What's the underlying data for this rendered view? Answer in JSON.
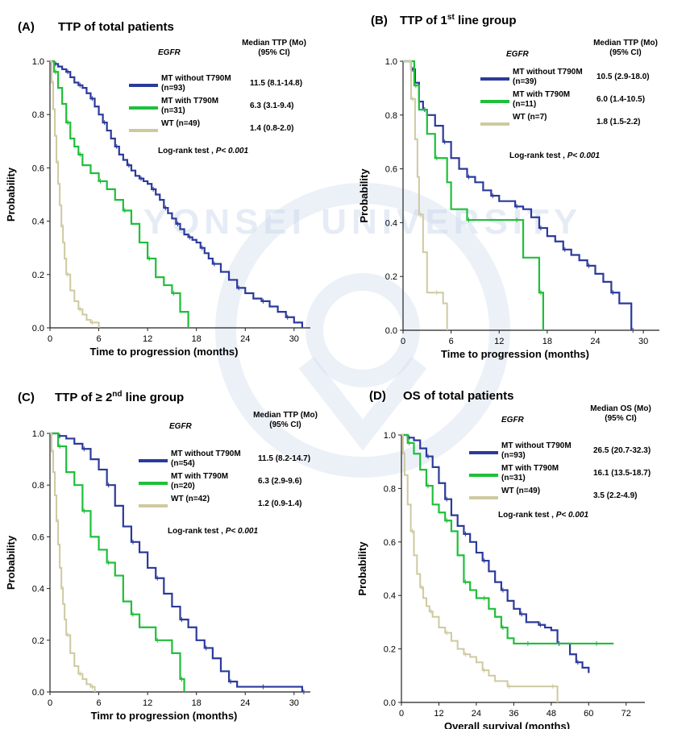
{
  "colors": {
    "mt_without": "#2b3a9b",
    "mt_with": "#1fbf3a",
    "wt": "#cfc9a0",
    "axis": "#222222",
    "watermark": "#c9d6ea"
  },
  "watermark": {
    "text": "YONSEI UNIVERSITY"
  },
  "chart_data": [
    {
      "type": "line",
      "panel_label": "(A)",
      "title": "TTP of total patients",
      "title_sup": "",
      "title_suffix": "",
      "xlabel": "Time to progression (months)",
      "ylabel": "Probability",
      "xlim": [
        0,
        32
      ],
      "ylim": [
        0,
        1.0
      ],
      "xticks": [
        0,
        6,
        12,
        18,
        24,
        30
      ],
      "yticks": [
        0.0,
        0.2,
        0.4,
        0.6,
        0.8,
        1.0
      ],
      "legend_header": "EGFR",
      "median_header": "Median TTP (Mo)",
      "ci_header": "(95% CI)",
      "test_label": "Log-rank test ,",
      "test_p": "P< 0.001",
      "series": [
        {
          "key": "mt_without",
          "name": "MT without T790M",
          "n": "(n=93)",
          "median": "11.5 (8.1-14.8)",
          "x": [
            0,
            0.5,
            1,
            1.5,
            2,
            2.5,
            3,
            3.5,
            4,
            4.5,
            5,
            5.5,
            6,
            6.5,
            7,
            7.5,
            8,
            8.5,
            9,
            9.5,
            10,
            10.5,
            11,
            11.5,
            12,
            12.5,
            13,
            13.5,
            14,
            14.5,
            15,
            15.5,
            16,
            16.5,
            17,
            17.5,
            18,
            18.5,
            19,
            19.5,
            20,
            21,
            22,
            23,
            24,
            25,
            26,
            27,
            28,
            29,
            30,
            31
          ],
          "y": [
            1.0,
            0.99,
            0.98,
            0.97,
            0.96,
            0.94,
            0.92,
            0.91,
            0.9,
            0.88,
            0.86,
            0.83,
            0.8,
            0.77,
            0.74,
            0.71,
            0.68,
            0.65,
            0.63,
            0.61,
            0.59,
            0.57,
            0.56,
            0.55,
            0.54,
            0.52,
            0.5,
            0.48,
            0.45,
            0.43,
            0.41,
            0.39,
            0.37,
            0.35,
            0.34,
            0.33,
            0.32,
            0.3,
            0.28,
            0.26,
            0.24,
            0.21,
            0.18,
            0.15,
            0.13,
            0.11,
            0.1,
            0.08,
            0.06,
            0.04,
            0.02,
            0.0
          ]
        },
        {
          "key": "mt_with",
          "name": "MT with T790M",
          "n": "(n=31)",
          "median": "6.3 (3.1-9.4)",
          "x": [
            0,
            0.5,
            1,
            1.5,
            2,
            2.5,
            3,
            3.5,
            4,
            5,
            6,
            7,
            8,
            9,
            10,
            11,
            12,
            13,
            14,
            15,
            16,
            17
          ],
          "y": [
            1.0,
            0.96,
            0.9,
            0.84,
            0.77,
            0.71,
            0.68,
            0.65,
            0.61,
            0.58,
            0.55,
            0.52,
            0.48,
            0.44,
            0.39,
            0.32,
            0.26,
            0.19,
            0.16,
            0.13,
            0.06,
            0.0
          ]
        },
        {
          "key": "wt",
          "name": "WT (n=49)",
          "n": "",
          "median": "1.4 (0.8-2.0)",
          "x": [
            0,
            0.2,
            0.4,
            0.6,
            0.8,
            1.0,
            1.2,
            1.4,
            1.6,
            1.8,
            2.0,
            2.5,
            3,
            3.5,
            4,
            4.5,
            5,
            6
          ],
          "y": [
            1.0,
            0.92,
            0.82,
            0.72,
            0.62,
            0.54,
            0.46,
            0.38,
            0.32,
            0.26,
            0.2,
            0.14,
            0.1,
            0.07,
            0.05,
            0.03,
            0.02,
            0.0
          ]
        }
      ]
    },
    {
      "type": "line",
      "panel_label": "(B)",
      "title": "TTP of 1",
      "title_sup": "st",
      "title_suffix": " line group",
      "xlabel": "Time to progression (months)",
      "ylabel": "Probability",
      "xlim": [
        0,
        32
      ],
      "ylim": [
        0,
        1.0
      ],
      "xticks": [
        0,
        6,
        12,
        18,
        24,
        30
      ],
      "yticks": [
        0.0,
        0.2,
        0.4,
        0.6,
        0.8,
        1.0
      ],
      "legend_header": "EGFR",
      "median_header": "Median TTP (Mo)",
      "ci_header": "(95% CI)",
      "test_label": "Log-rank test ,",
      "test_p": "P< 0.001",
      "series": [
        {
          "key": "mt_without",
          "name": "MT without T790M",
          "n": "(n=39)",
          "median": "10.5 (2.9-18.0)",
          "x": [
            0,
            1,
            1.5,
            2,
            2.5,
            3,
            4,
            5,
            6,
            7,
            8,
            9,
            10,
            11,
            12,
            13,
            14,
            15,
            16,
            17,
            18,
            19,
            20,
            21,
            22,
            23,
            24,
            25,
            26,
            27,
            28,
            28.5
          ],
          "y": [
            1.0,
            0.97,
            0.92,
            0.85,
            0.82,
            0.8,
            0.76,
            0.7,
            0.64,
            0.6,
            0.57,
            0.55,
            0.52,
            0.5,
            0.48,
            0.48,
            0.46,
            0.45,
            0.42,
            0.38,
            0.35,
            0.33,
            0.3,
            0.28,
            0.26,
            0.24,
            0.21,
            0.18,
            0.14,
            0.1,
            0.1,
            0.0
          ]
        },
        {
          "key": "mt_with",
          "name": "MT with T790M",
          "n": "(n=11)",
          "median": "6.0 (1.4-10.5)",
          "x": [
            0,
            1.4,
            2,
            3,
            4,
            5.5,
            6,
            8,
            10,
            12,
            14,
            15,
            16,
            17,
            17.5
          ],
          "y": [
            1.0,
            0.91,
            0.82,
            0.73,
            0.64,
            0.55,
            0.45,
            0.41,
            0.41,
            0.41,
            0.41,
            0.27,
            0.27,
            0.14,
            0.0
          ]
        },
        {
          "key": "wt",
          "name": "WT (n=7)",
          "n": "",
          "median": "1.8 (1.5-2.2)",
          "x": [
            0,
            1.0,
            1.5,
            1.8,
            2.0,
            2.5,
            3,
            4,
            5,
            5.5
          ],
          "y": [
            1.0,
            0.86,
            0.71,
            0.57,
            0.43,
            0.29,
            0.14,
            0.14,
            0.1,
            0.0
          ]
        }
      ]
    },
    {
      "type": "line",
      "panel_label": "(C)",
      "title": "TTP of ≥ 2",
      "title_sup": "nd",
      "title_suffix": " line group",
      "xlabel": "Timr to progression (months)",
      "ylabel": "Probability",
      "xlim": [
        0,
        32
      ],
      "ylim": [
        0,
        1.0
      ],
      "xticks": [
        0,
        6,
        12,
        18,
        24,
        30
      ],
      "yticks": [
        0.0,
        0.2,
        0.4,
        0.6,
        0.8,
        1.0
      ],
      "legend_header": "EGFR",
      "median_header": "Median TTP (Mo)",
      "ci_header": "(95% CI)",
      "test_label": "Log-rank test ,",
      "test_p": "P< 0.001",
      "series": [
        {
          "key": "mt_without",
          "name": "MT without T790M",
          "n": "(n=54)",
          "median": "11.5 (8.2-14.7)",
          "x": [
            0,
            1,
            2,
            3,
            4,
            5,
            6,
            7,
            8,
            9,
            10,
            11,
            12,
            13,
            14,
            15,
            16,
            17,
            18,
            19,
            20,
            21,
            22,
            23,
            24,
            26,
            28,
            30,
            31
          ],
          "y": [
            1.0,
            0.99,
            0.98,
            0.96,
            0.94,
            0.9,
            0.86,
            0.8,
            0.72,
            0.64,
            0.58,
            0.54,
            0.48,
            0.44,
            0.38,
            0.33,
            0.28,
            0.25,
            0.2,
            0.17,
            0.13,
            0.08,
            0.04,
            0.02,
            0.02,
            0.02,
            0.02,
            0.02,
            0.0
          ]
        },
        {
          "key": "mt_with",
          "name": "MT with T790M",
          "n": "(n=20)",
          "median": "6.3 (2.9-9.6)",
          "x": [
            0,
            1,
            2,
            3,
            4,
            5,
            6,
            7,
            8,
            9,
            10,
            11,
            12,
            13,
            14,
            15,
            16,
            16.5
          ],
          "y": [
            1.0,
            0.95,
            0.85,
            0.8,
            0.7,
            0.6,
            0.55,
            0.5,
            0.45,
            0.35,
            0.3,
            0.25,
            0.25,
            0.2,
            0.2,
            0.15,
            0.05,
            0.0
          ]
        },
        {
          "key": "wt",
          "name": "WT (n=42)",
          "n": "",
          "median": "1.2 (0.9-1.4)",
          "x": [
            0,
            0.2,
            0.4,
            0.6,
            0.8,
            1.0,
            1.2,
            1.4,
            1.6,
            1.8,
            2.0,
            2.5,
            3,
            3.5,
            4,
            4.5,
            5,
            5.5
          ],
          "y": [
            1.0,
            0.93,
            0.85,
            0.76,
            0.66,
            0.57,
            0.48,
            0.4,
            0.34,
            0.28,
            0.22,
            0.15,
            0.1,
            0.07,
            0.05,
            0.03,
            0.02,
            0.0
          ]
        }
      ]
    },
    {
      "type": "line",
      "panel_label": "(D)",
      "title": "OS of total patients",
      "title_sup": "",
      "title_suffix": "",
      "xlabel": "Overall survival (months)",
      "ylabel": "Probability",
      "xlim": [
        0,
        78
      ],
      "ylim": [
        0,
        1.0
      ],
      "xticks": [
        0,
        12,
        24,
        36,
        48,
        60,
        72
      ],
      "yticks": [
        0.0,
        0.2,
        0.4,
        0.6,
        0.8,
        1.0
      ],
      "legend_header": "EGFR",
      "median_header": "Median OS (Mo)",
      "ci_header": "(95% CI)",
      "test_label": "Log-rank test ,",
      "test_p": "P< 0.001",
      "series": [
        {
          "key": "mt_without",
          "name": "MT without T790M",
          "n": "(n=93)",
          "median": "26.5 (20.7-32.3)",
          "x": [
            0,
            2,
            4,
            6,
            8,
            10,
            12,
            14,
            16,
            18,
            20,
            22,
            24,
            26,
            28,
            30,
            32,
            34,
            36,
            38,
            40,
            42,
            44,
            46,
            48,
            50,
            52,
            54,
            56,
            58,
            60
          ],
          "y": [
            1.0,
            0.99,
            0.98,
            0.95,
            0.92,
            0.88,
            0.82,
            0.76,
            0.7,
            0.66,
            0.63,
            0.6,
            0.56,
            0.53,
            0.49,
            0.45,
            0.42,
            0.38,
            0.35,
            0.33,
            0.3,
            0.3,
            0.29,
            0.28,
            0.27,
            0.22,
            0.22,
            0.18,
            0.15,
            0.13,
            0.11
          ]
        },
        {
          "key": "mt_with",
          "name": "MT with T790M",
          "n": "(n=31)",
          "median": "16.1 (13.5-18.7)",
          "x": [
            0,
            2,
            4,
            6,
            8,
            10,
            12,
            14,
            16,
            18,
            20,
            22,
            24,
            26,
            28,
            30,
            32,
            34,
            36,
            40,
            48,
            56,
            62,
            68
          ],
          "y": [
            1.0,
            0.97,
            0.93,
            0.87,
            0.81,
            0.74,
            0.71,
            0.68,
            0.64,
            0.55,
            0.45,
            0.42,
            0.39,
            0.39,
            0.35,
            0.32,
            0.28,
            0.24,
            0.22,
            0.22,
            0.22,
            0.22,
            0.22,
            0.22
          ]
        },
        {
          "key": "wt",
          "name": "WT (n=49)",
          "n": "",
          "median": "3.5 (2.2-4.9)",
          "x": [
            0,
            0.5,
            1,
            2,
            3,
            4,
            5,
            6,
            7,
            8,
            9,
            10,
            12,
            14,
            16,
            18,
            20,
            22,
            24,
            26,
            28,
            30,
            34,
            40,
            44,
            48,
            50
          ],
          "y": [
            1.0,
            0.93,
            0.85,
            0.74,
            0.64,
            0.55,
            0.48,
            0.43,
            0.39,
            0.36,
            0.34,
            0.32,
            0.28,
            0.26,
            0.23,
            0.2,
            0.18,
            0.17,
            0.15,
            0.12,
            0.1,
            0.08,
            0.06,
            0.06,
            0.06,
            0.06,
            0.0
          ]
        }
      ]
    }
  ]
}
